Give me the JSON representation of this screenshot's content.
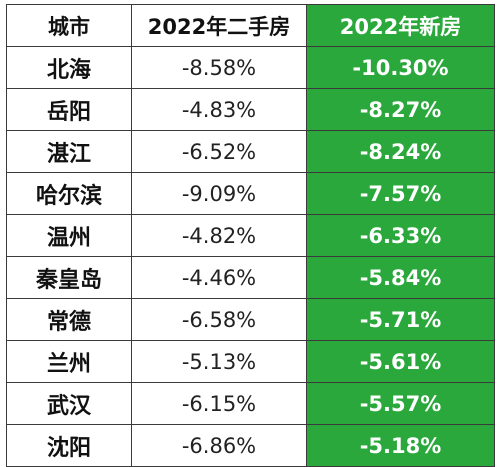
{
  "table": {
    "headers": {
      "city": "城市",
      "old": "2022年二手房",
      "new": "2022年新房"
    },
    "rows": [
      {
        "city": "北海",
        "old": "-8.58%",
        "new": "-10.30%"
      },
      {
        "city": "岳阳",
        "old": "-4.83%",
        "new": "-8.27%"
      },
      {
        "city": "湛江",
        "old": "-6.52%",
        "new": "-8.24%"
      },
      {
        "city": "哈尔滨",
        "old": "-9.09%",
        "new": "-7.57%"
      },
      {
        "city": "温州",
        "old": "-4.82%",
        "new": "-6.33%"
      },
      {
        "city": "秦皇岛",
        "old": "-4.46%",
        "new": "-5.84%"
      },
      {
        "city": "常德",
        "old": "-6.58%",
        "new": "-5.71%"
      },
      {
        "city": "兰州",
        "old": "-5.13%",
        "new": "-5.61%"
      },
      {
        "city": "武汉",
        "old": "-6.15%",
        "new": "-5.57%"
      },
      {
        "city": "沈阳",
        "old": "-6.86%",
        "new": "-5.18%"
      }
    ],
    "colors": {
      "highlight": "#2aa83c",
      "border": "#3a3a3a"
    }
  }
}
